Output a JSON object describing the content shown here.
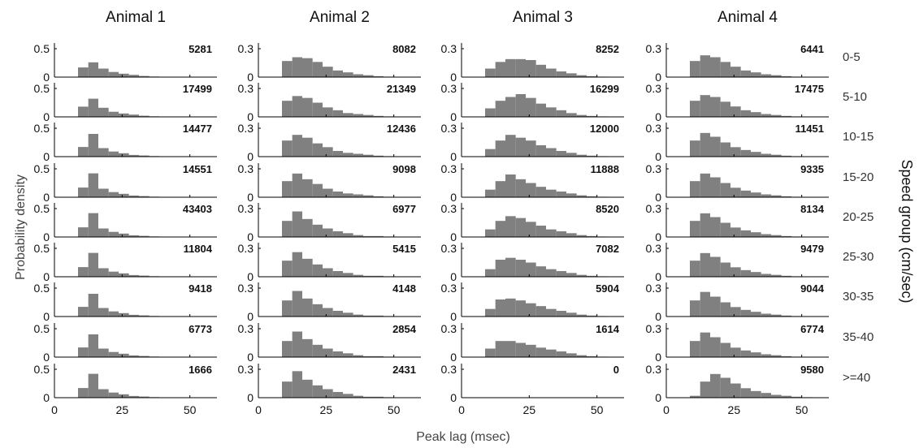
{
  "chart_data": {
    "type": "bar",
    "layout": "small-multiples grid of histograms (rows = speed groups, columns = animals)",
    "xlabel": "Peak lag (msec)",
    "ylabel": "Probability density",
    "right_label": "Speed group (cm/sec)",
    "xlim": [
      0,
      60
    ],
    "x_ticks": [
      0,
      25,
      50
    ],
    "bin_edges": [
      8.7,
      12.5,
      16.2,
      20,
      23.7,
      27.5,
      31.2,
      35,
      38.7,
      42.5,
      46.2,
      50,
      53.7,
      57.5,
      61.2
    ],
    "bar_color": "#808080",
    "grid": false,
    "columns": [
      {
        "name": "Animal 1",
        "ylim": [
          0,
          0.6
        ],
        "y_ticks": [
          0,
          0.5
        ],
        "y_tick_labels": [
          "0",
          "0.5"
        ],
        "rows": [
          {
            "group": "0-5",
            "count": "5281",
            "values": [
              0.17,
              0.26,
              0.15,
              0.09,
              0.06,
              0.04,
              0.02,
              0.01,
              0.005,
              0,
              0,
              0,
              0,
              0
            ]
          },
          {
            "group": "5-10",
            "count": "17499",
            "values": [
              0.18,
              0.32,
              0.16,
              0.09,
              0.06,
              0.04,
              0.02,
              0.01,
              0.005,
              0,
              0,
              0,
              0,
              0
            ]
          },
          {
            "group": "10-15",
            "count": "14477",
            "values": [
              0.17,
              0.4,
              0.15,
              0.09,
              0.06,
              0.03,
              0.02,
              0.01,
              0.005,
              0,
              0,
              0,
              0,
              0
            ]
          },
          {
            "group": "15-20",
            "count": "14551",
            "values": [
              0.17,
              0.42,
              0.15,
              0.09,
              0.06,
              0.03,
              0.02,
              0.01,
              0.005,
              0,
              0,
              0,
              0,
              0
            ]
          },
          {
            "group": "20-25",
            "count": "43403",
            "values": [
              0.17,
              0.42,
              0.15,
              0.09,
              0.06,
              0.03,
              0.02,
              0.01,
              0.005,
              0,
              0,
              0,
              0,
              0
            ]
          },
          {
            "group": "25-30",
            "count": "11804",
            "values": [
              0.17,
              0.42,
              0.15,
              0.09,
              0.06,
              0.03,
              0.02,
              0.01,
              0.005,
              0,
              0,
              0,
              0,
              0
            ]
          },
          {
            "group": "30-35",
            "count": "9418",
            "values": [
              0.17,
              0.4,
              0.15,
              0.09,
              0.06,
              0.03,
              0.02,
              0.01,
              0.005,
              0,
              0,
              0,
              0,
              0
            ]
          },
          {
            "group": "35-40",
            "count": "6773",
            "values": [
              0.17,
              0.4,
              0.15,
              0.09,
              0.06,
              0.03,
              0.02,
              0.01,
              0.005,
              0,
              0,
              0,
              0,
              0
            ]
          },
          {
            "group": ">=40",
            "count": "1666",
            "values": [
              0.17,
              0.42,
              0.15,
              0.09,
              0.06,
              0.03,
              0.02,
              0.01,
              0.005,
              0,
              0,
              0,
              0,
              0
            ]
          }
        ]
      },
      {
        "name": "Animal 2",
        "ylim": [
          0,
          0.36
        ],
        "y_ticks": [
          0,
          0.3
        ],
        "y_tick_labels": [
          "0",
          "0.3"
        ],
        "rows": [
          {
            "group": "0-5",
            "count": "8082",
            "values": [
              0.17,
              0.21,
              0.2,
              0.16,
              0.11,
              0.07,
              0.05,
              0.03,
              0.02,
              0.01,
              0.005,
              0,
              0,
              0
            ]
          },
          {
            "group": "5-10",
            "count": "21349",
            "values": [
              0.17,
              0.22,
              0.2,
              0.15,
              0.1,
              0.07,
              0.04,
              0.03,
              0.02,
              0.01,
              0.005,
              0,
              0,
              0
            ]
          },
          {
            "group": "10-15",
            "count": "12436",
            "values": [
              0.17,
              0.23,
              0.2,
              0.14,
              0.1,
              0.06,
              0.04,
              0.03,
              0.02,
              0.01,
              0.005,
              0,
              0,
              0
            ]
          },
          {
            "group": "15-20",
            "count": "9098",
            "values": [
              0.17,
              0.25,
              0.19,
              0.14,
              0.09,
              0.06,
              0.04,
              0.03,
              0.02,
              0.01,
              0.005,
              0,
              0,
              0
            ]
          },
          {
            "group": "20-25",
            "count": "6977",
            "values": [
              0.17,
              0.27,
              0.19,
              0.13,
              0.09,
              0.06,
              0.04,
              0.02,
              0.01,
              0.01,
              0.005,
              0,
              0,
              0
            ]
          },
          {
            "group": "25-30",
            "count": "5415",
            "values": [
              0.17,
              0.26,
              0.19,
              0.13,
              0.09,
              0.06,
              0.04,
              0.02,
              0.01,
              0.01,
              0.005,
              0,
              0,
              0
            ]
          },
          {
            "group": "30-35",
            "count": "4148",
            "values": [
              0.17,
              0.27,
              0.19,
              0.13,
              0.09,
              0.06,
              0.04,
              0.02,
              0.01,
              0.01,
              0.005,
              0,
              0,
              0
            ]
          },
          {
            "group": "35-40",
            "count": "2854",
            "values": [
              0.17,
              0.27,
              0.19,
              0.13,
              0.09,
              0.06,
              0.04,
              0.02,
              0.01,
              0.01,
              0.005,
              0,
              0,
              0
            ]
          },
          {
            "group": ">=40",
            "count": "2431",
            "values": [
              0.17,
              0.28,
              0.19,
              0.13,
              0.09,
              0.06,
              0.04,
              0.02,
              0.01,
              0.01,
              0.005,
              0,
              0,
              0
            ]
          }
        ]
      },
      {
        "name": "Animal 3",
        "ylim": [
          0,
          0.36
        ],
        "y_ticks": [
          0,
          0.3
        ],
        "y_tick_labels": [
          "0",
          "0.3"
        ],
        "rows": [
          {
            "group": "0-5",
            "count": "8252",
            "values": [
              0.09,
              0.16,
              0.19,
              0.19,
              0.18,
              0.13,
              0.09,
              0.06,
              0.04,
              0.02,
              0.01,
              0.005,
              0,
              0
            ]
          },
          {
            "group": "5-10",
            "count": "16299",
            "values": [
              0.09,
              0.17,
              0.21,
              0.24,
              0.2,
              0.14,
              0.1,
              0.07,
              0.04,
              0.02,
              0.01,
              0.005,
              0,
              0
            ]
          },
          {
            "group": "10-15",
            "count": "12000",
            "values": [
              0.08,
              0.17,
              0.23,
              0.2,
              0.17,
              0.12,
              0.09,
              0.06,
              0.04,
              0.02,
              0.01,
              0.005,
              0,
              0
            ]
          },
          {
            "group": "15-20",
            "count": "11888",
            "values": [
              0.08,
              0.17,
              0.24,
              0.19,
              0.15,
              0.11,
              0.08,
              0.06,
              0.04,
              0.02,
              0.01,
              0.005,
              0,
              0
            ]
          },
          {
            "group": "20-25",
            "count": "8520",
            "values": [
              0.08,
              0.17,
              0.22,
              0.2,
              0.16,
              0.12,
              0.08,
              0.06,
              0.04,
              0.02,
              0.01,
              0.005,
              0,
              0
            ]
          },
          {
            "group": "25-30",
            "count": "7082",
            "values": [
              0.08,
              0.18,
              0.2,
              0.18,
              0.15,
              0.11,
              0.08,
              0.06,
              0.04,
              0.02,
              0.01,
              0.005,
              0,
              0
            ]
          },
          {
            "group": "30-35",
            "count": "5904",
            "values": [
              0.08,
              0.18,
              0.19,
              0.17,
              0.14,
              0.11,
              0.08,
              0.06,
              0.04,
              0.02,
              0.01,
              0.005,
              0,
              0
            ]
          },
          {
            "group": "35-40",
            "count": "1614",
            "values": [
              0.09,
              0.17,
              0.17,
              0.15,
              0.13,
              0.1,
              0.08,
              0.06,
              0.04,
              0.02,
              0.01,
              0.005,
              0,
              0
            ]
          },
          {
            "group": ">=40",
            "count": "0",
            "values": [
              0,
              0,
              0,
              0,
              0,
              0,
              0,
              0,
              0,
              0,
              0,
              0,
              0,
              0
            ]
          }
        ]
      },
      {
        "name": "Animal 4",
        "ylim": [
          0,
          0.36
        ],
        "y_ticks": [
          0,
          0.3
        ],
        "y_tick_labels": [
          "0",
          "0.3"
        ],
        "rows": [
          {
            "group": "0-5",
            "count": "6441",
            "values": [
              0.17,
              0.23,
              0.21,
              0.16,
              0.11,
              0.07,
              0.05,
              0.03,
              0.02,
              0.01,
              0.005,
              0,
              0,
              0
            ]
          },
          {
            "group": "5-10",
            "count": "17475",
            "values": [
              0.17,
              0.23,
              0.21,
              0.16,
              0.11,
              0.07,
              0.05,
              0.03,
              0.02,
              0.01,
              0.005,
              0,
              0,
              0
            ]
          },
          {
            "group": "10-15",
            "count": "11451",
            "values": [
              0.17,
              0.25,
              0.21,
              0.15,
              0.1,
              0.07,
              0.05,
              0.03,
              0.02,
              0.01,
              0.005,
              0,
              0,
              0
            ]
          },
          {
            "group": "15-20",
            "count": "9335",
            "values": [
              0.17,
              0.25,
              0.21,
              0.15,
              0.1,
              0.07,
              0.05,
              0.03,
              0.02,
              0.01,
              0.005,
              0,
              0,
              0
            ]
          },
          {
            "group": "20-25",
            "count": "8134",
            "values": [
              0.17,
              0.25,
              0.21,
              0.15,
              0.1,
              0.07,
              0.05,
              0.03,
              0.02,
              0.01,
              0.005,
              0,
              0,
              0
            ]
          },
          {
            "group": "25-30",
            "count": "9479",
            "values": [
              0.17,
              0.25,
              0.21,
              0.15,
              0.1,
              0.07,
              0.05,
              0.03,
              0.02,
              0.01,
              0.005,
              0,
              0,
              0
            ]
          },
          {
            "group": "30-35",
            "count": "9044",
            "values": [
              0.17,
              0.26,
              0.21,
              0.15,
              0.1,
              0.07,
              0.05,
              0.03,
              0.02,
              0.01,
              0.005,
              0,
              0,
              0
            ]
          },
          {
            "group": "35-40",
            "count": "6774",
            "values": [
              0.17,
              0.26,
              0.21,
              0.15,
              0.1,
              0.07,
              0.05,
              0.03,
              0.02,
              0.01,
              0.005,
              0,
              0,
              0
            ]
          },
          {
            "group": ">=40",
            "count": "9580",
            "values": [
              0.02,
              0.17,
              0.25,
              0.21,
              0.15,
              0.1,
              0.07,
              0.05,
              0.03,
              0.02,
              0.01,
              0.005,
              0,
              0
            ]
          }
        ]
      }
    ]
  }
}
